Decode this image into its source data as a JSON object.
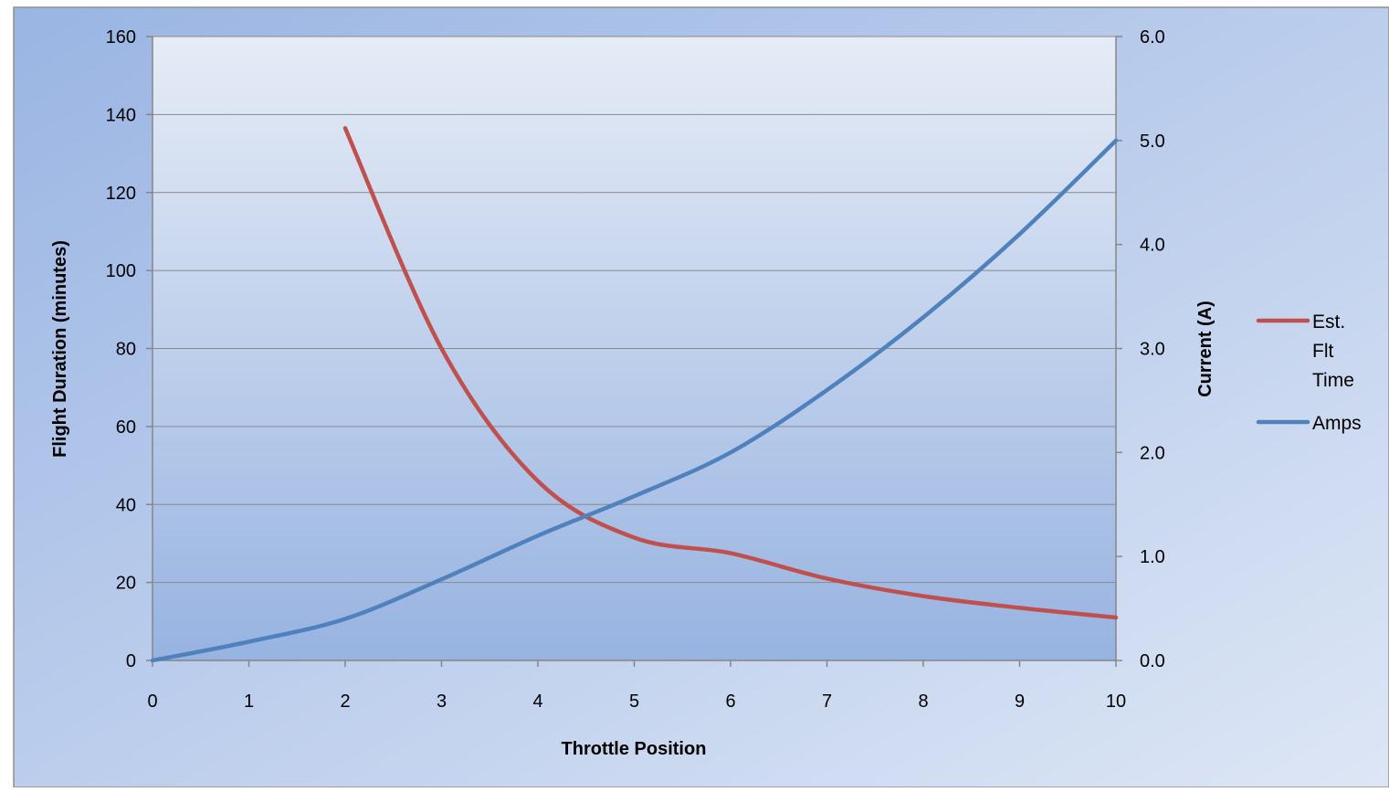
{
  "chart_data": {
    "type": "line",
    "title": "",
    "xlabel": "Throttle Position",
    "ylabel_left": "Flight Duration (minutes)",
    "ylabel_right": "Current (A)",
    "xlim": [
      0,
      10
    ],
    "ylim_left": [
      0,
      160
    ],
    "ylim_right": [
      0,
      6
    ],
    "x_ticks": [
      "0",
      "1",
      "2",
      "3",
      "4",
      "5",
      "6",
      "7",
      "8",
      "9",
      "10"
    ],
    "y_left_ticks": [
      "0",
      "20",
      "40",
      "60",
      "80",
      "100",
      "120",
      "140",
      "160"
    ],
    "y_right_ticks": [
      "0.0",
      "1.0",
      "2.0",
      "3.0",
      "4.0",
      "5.0",
      "6.0"
    ],
    "grid": true,
    "legend_position": "right",
    "series": [
      {
        "name": "Est. Flt Time",
        "name_lines": [
          "Est.",
          "Flt",
          "Time"
        ],
        "axis": "left",
        "color": "#c0504d",
        "x": [
          2,
          3,
          4,
          5,
          6,
          7,
          8,
          9,
          10
        ],
        "y": [
          136.5,
          80,
          46,
          31.5,
          27.5,
          21,
          16.5,
          13.5,
          11
        ]
      },
      {
        "name": "Amps",
        "name_lines": [
          "Amps"
        ],
        "axis": "right",
        "color": "#4f81bd",
        "x": [
          0,
          1,
          2,
          3,
          4,
          5,
          6,
          7,
          8,
          9,
          10
        ],
        "y": [
          0,
          0.18,
          0.4,
          0.78,
          1.2,
          1.58,
          2.0,
          2.6,
          3.3,
          4.1,
          5.0
        ]
      }
    ]
  }
}
